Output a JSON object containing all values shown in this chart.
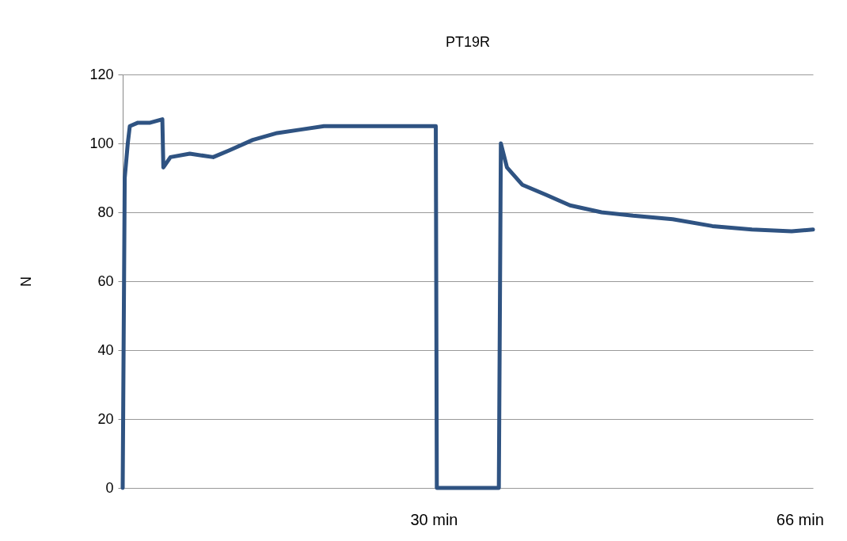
{
  "chart_data": {
    "type": "line",
    "title": "PT19R",
    "ylabel": "N",
    "x": [
      -0.6,
      -0.4,
      -0.1,
      0.1,
      0.9,
      2.1,
      3.3,
      3.4,
      4.1,
      6.0,
      8.3,
      9.9,
      12.2,
      14.6,
      16.9,
      19.2,
      22.4,
      26.3,
      30.2,
      30.3,
      36.4,
      36.6,
      37.2,
      38.7,
      41.1,
      43.4,
      46.5,
      49.6,
      53.5,
      57.4,
      61.3,
      65.2,
      67.3
    ],
    "series": [
      {
        "color": "#2f5382",
        "values": [
          0,
          90,
          100,
          105,
          106,
          106,
          107,
          93,
          96,
          97,
          96,
          98,
          101,
          103,
          104,
          105,
          105,
          105,
          105,
          0,
          0,
          100,
          93,
          88,
          85,
          82,
          80,
          79,
          78,
          76,
          75,
          74.5,
          75
        ]
      }
    ],
    "xlim": [
      -0.6,
      67.3
    ],
    "xticks": [
      {
        "value": 30,
        "label": "30 min"
      },
      {
        "value": 66,
        "label": "66 min"
      }
    ],
    "ylim": [
      0,
      120
    ],
    "yticks": [
      0,
      20,
      40,
      60,
      80,
      100,
      120
    ],
    "grid": "y",
    "marker": "none",
    "line_style": "solid"
  }
}
